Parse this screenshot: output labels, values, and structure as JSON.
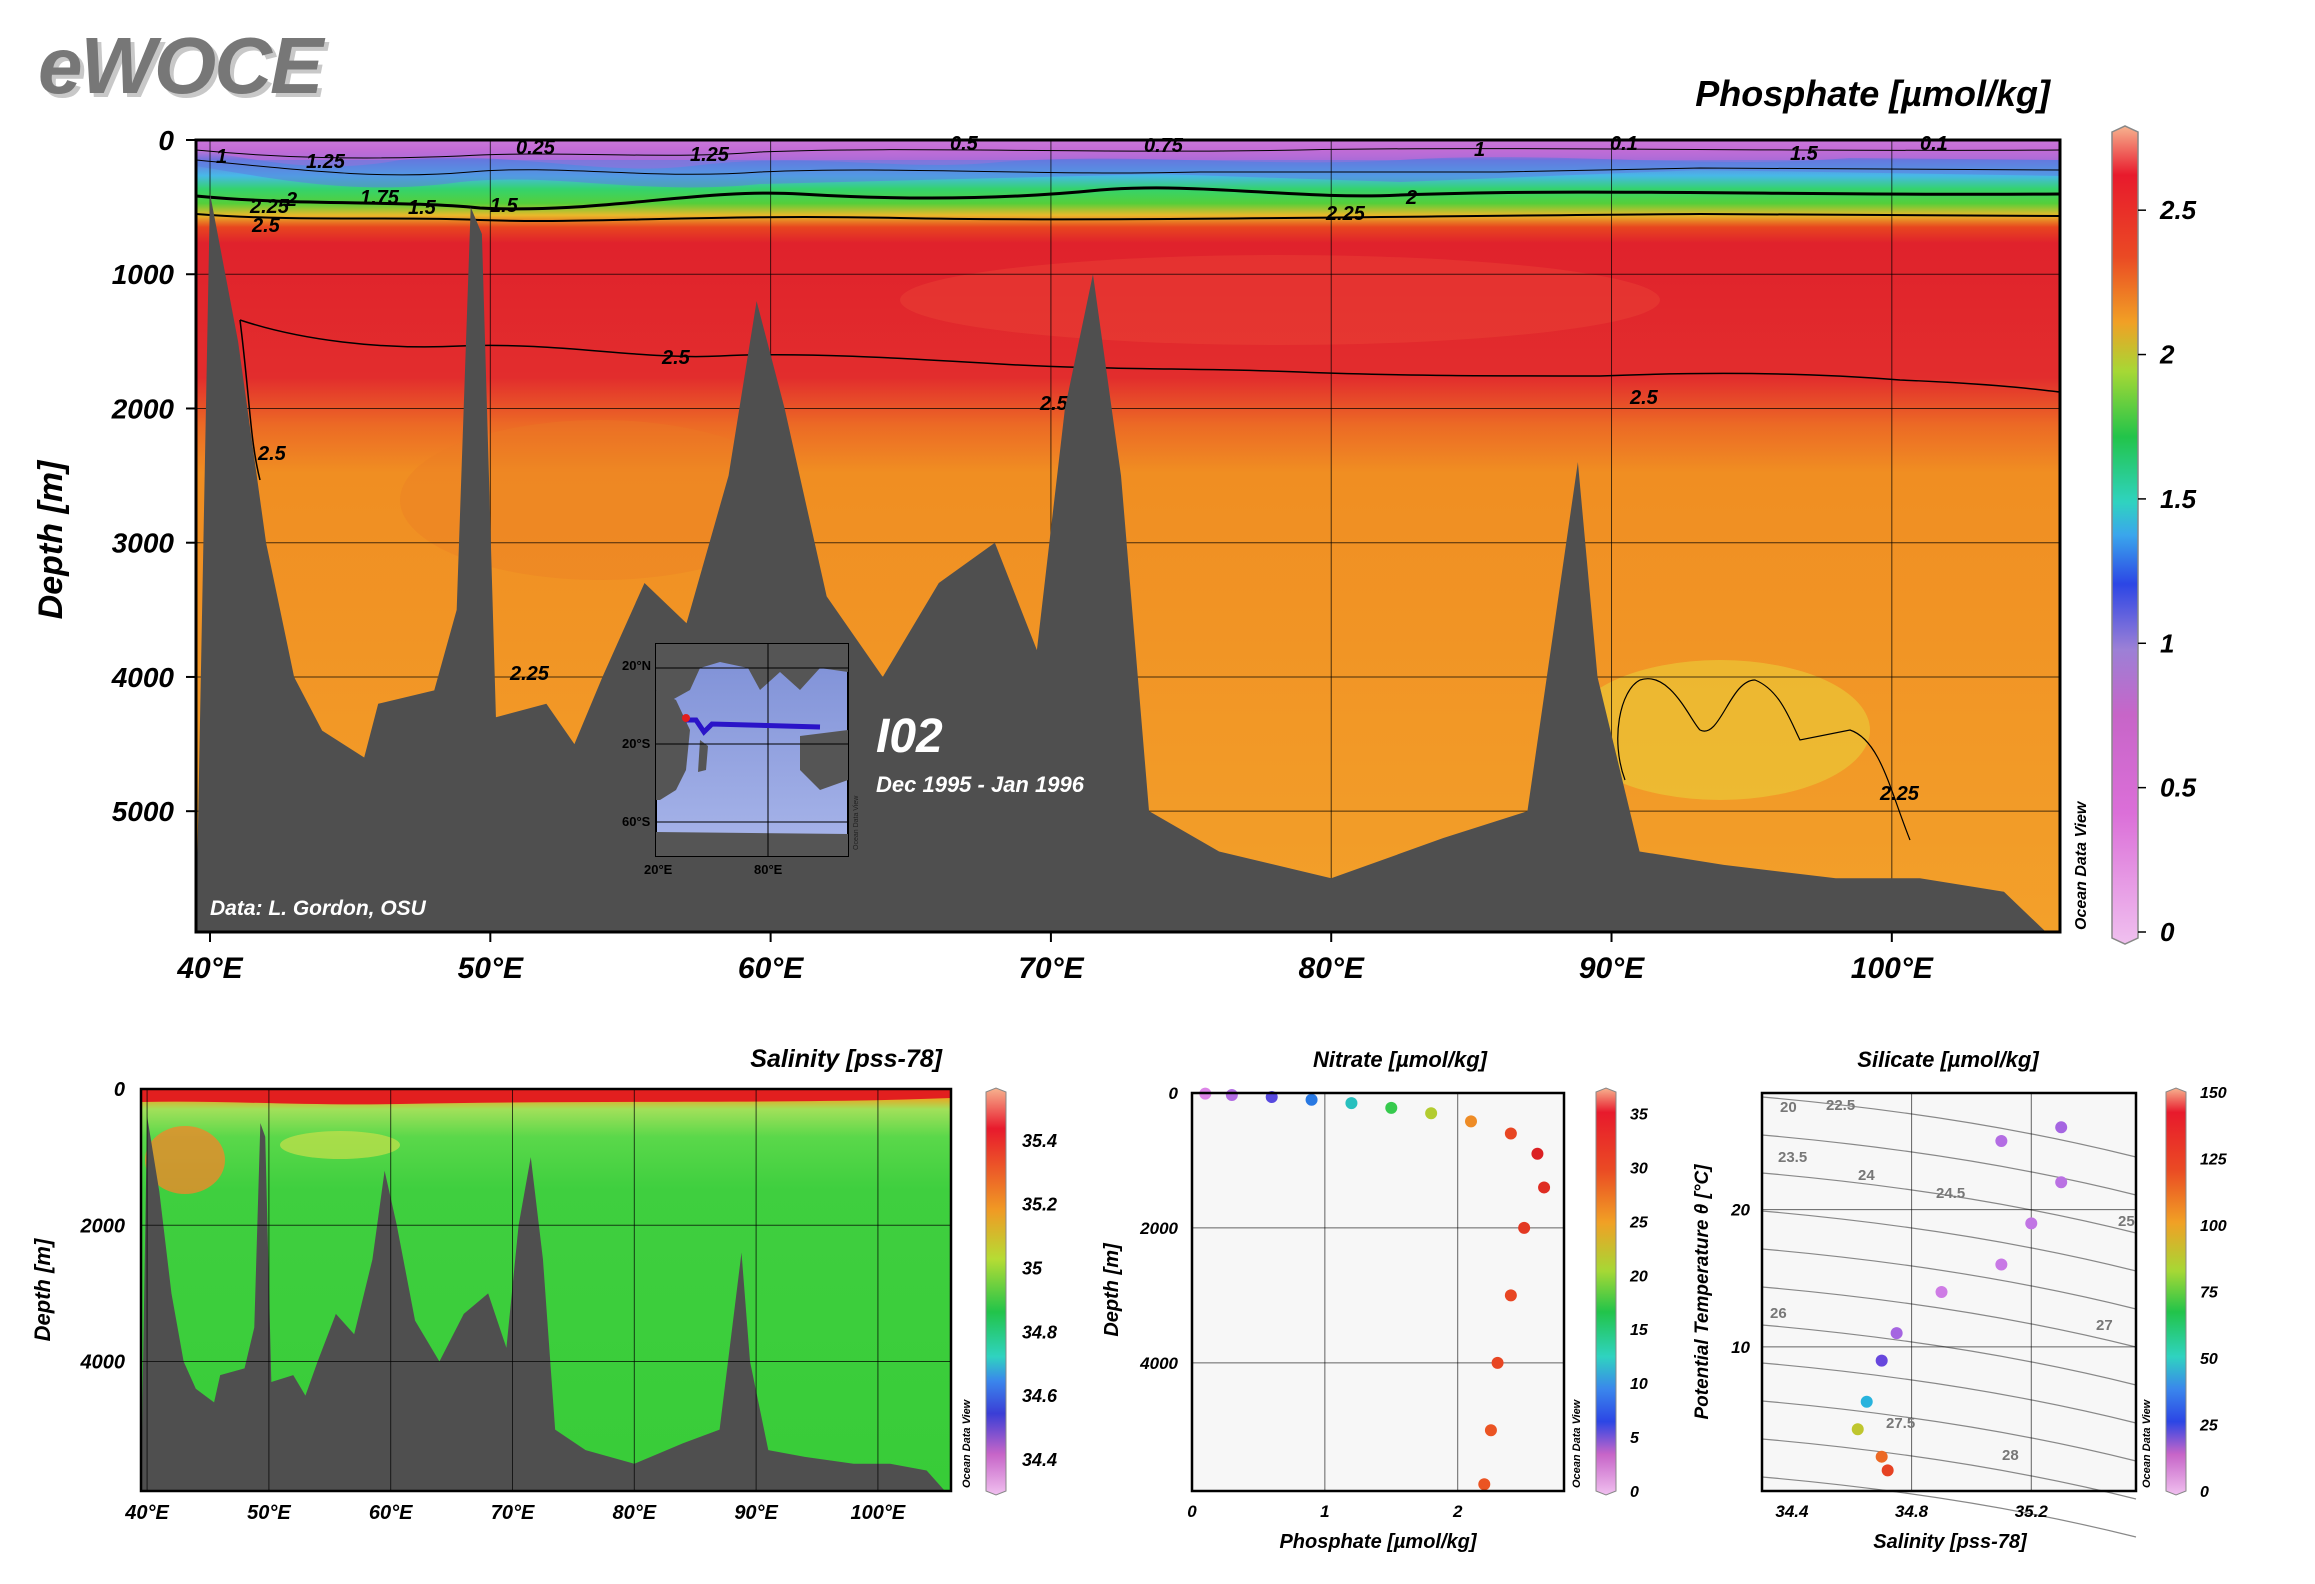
{
  "logo": "eWOCE",
  "main_section": {
    "title": "Phosphate [µmol/kg]",
    "ylabel": "Depth [m]",
    "y_ticks": [
      "0",
      "1000",
      "2000",
      "3000",
      "4000",
      "5000"
    ],
    "x_ticks": [
      "40°E",
      "50°E",
      "60°E",
      "70°E",
      "80°E",
      "90°E",
      "100°E"
    ],
    "colorbar_ticks": [
      "2.5",
      "2",
      "1.5",
      "1",
      "0.5",
      "0"
    ],
    "watermark": "Ocean Data View",
    "credit": "Data: L. Gordon, OSU",
    "cruise": "I02",
    "dates": "Dec 1995 - Jan 1996",
    "contour_labels": [
      "1",
      "1.25",
      "0.25",
      "1.25",
      "0.5",
      "0.75",
      "1",
      "0.1",
      "1.5",
      "0.1",
      "2.25",
      "2",
      "1.75",
      "1.5",
      "1.5",
      "2.5",
      "2",
      "2.25",
      "2.5",
      "2.5",
      "2.5",
      "2.5",
      "2.25",
      "2.25"
    ],
    "inset_map": {
      "lat_labels": [
        "20°N",
        "20°S",
        "60°S"
      ],
      "lon_labels": [
        "20°E",
        "80°E"
      ],
      "credit": "Ocean Data View"
    }
  },
  "salinity_section": {
    "title": "Salinity [pss-78]",
    "ylabel": "Depth [m]",
    "y_ticks": [
      "0",
      "2000",
      "4000"
    ],
    "x_ticks": [
      "40°E",
      "50°E",
      "60°E",
      "70°E",
      "80°E",
      "90°E",
      "100°E"
    ],
    "colorbar_ticks": [
      "35.4",
      "35.2",
      "35",
      "34.8",
      "34.6",
      "34.4"
    ],
    "watermark": "Ocean Data View"
  },
  "nitrate_scatter": {
    "title": "Nitrate [µmol/kg]",
    "xlabel": "Phosphate [µmol/kg]",
    "ylabel": "Depth [m]",
    "x_ticks": [
      "0",
      "1",
      "2"
    ],
    "y_ticks": [
      "0",
      "2000",
      "4000"
    ],
    "colorbar_ticks": [
      "35",
      "30",
      "25",
      "20",
      "15",
      "10",
      "5",
      "0"
    ],
    "watermark": "Ocean Data View"
  },
  "silicate_ts": {
    "title": "Silicate [µmol/kg]",
    "xlabel": "Salinity [pss-78]",
    "ylabel": "Potential Temperature θ [°C]",
    "x_ticks": [
      "34.4",
      "34.8",
      "35.2"
    ],
    "y_ticks": [
      "20",
      "10"
    ],
    "isopycnal_labels": [
      "20",
      "22.5",
      "23.5",
      "24",
      "24.5",
      "25",
      "26",
      "27",
      "27.5",
      "28"
    ],
    "colorbar_ticks": [
      "150",
      "125",
      "100",
      "75",
      "50",
      "25",
      "0"
    ],
    "watermark": "Ocean Data View"
  },
  "chart_data": [
    {
      "type": "heatmap",
      "title": "Phosphate [µmol/kg]",
      "xlabel": "",
      "ylabel": "Depth [m]",
      "xlim": [
        39.5,
        106
      ],
      "ylim": [
        5900,
        0
      ],
      "color_range": [
        0,
        2.75
      ],
      "profiles": [
        {
          "depth": 0,
          "value": 0.4
        },
        {
          "depth": 100,
          "value": 0.9
        },
        {
          "depth": 200,
          "value": 1.3
        },
        {
          "depth": 300,
          "value": 1.6
        },
        {
          "depth": 400,
          "value": 1.9
        },
        {
          "depth": 500,
          "value": 2.2
        },
        {
          "depth": 700,
          "value": 2.5
        },
        {
          "depth": 1000,
          "value": 2.65
        },
        {
          "depth": 1600,
          "value": 2.65
        },
        {
          "depth": 2000,
          "value": 2.5
        },
        {
          "depth": 2500,
          "value": 2.35
        },
        {
          "depth": 3500,
          "value": 2.3
        },
        {
          "depth": 4500,
          "value": 2.2
        },
        {
          "depth": 5800,
          "value": 2.2
        }
      ],
      "bathymetry": [
        {
          "lon": 40,
          "depth": 400
        },
        {
          "lon": 41,
          "depth": 1500
        },
        {
          "lon": 42,
          "depth": 3000
        },
        {
          "lon": 43,
          "depth": 4000
        },
        {
          "lon": 44,
          "depth": 4400
        },
        {
          "lon": 45.5,
          "depth": 4600
        },
        {
          "lon": 46,
          "depth": 4200
        },
        {
          "lon": 48,
          "depth": 4100
        },
        {
          "lon": 48.8,
          "depth": 3500
        },
        {
          "lon": 49.3,
          "depth": 500
        },
        {
          "lon": 49.7,
          "depth": 700
        },
        {
          "lon": 50.2,
          "depth": 4300
        },
        {
          "lon": 52,
          "depth": 4200
        },
        {
          "lon": 53,
          "depth": 4500
        },
        {
          "lon": 54,
          "depth": 4000
        },
        {
          "lon": 55.5,
          "depth": 3300
        },
        {
          "lon": 57,
          "depth": 3600
        },
        {
          "lon": 58.5,
          "depth": 2500
        },
        {
          "lon": 59.5,
          "depth": 1200
        },
        {
          "lon": 60.5,
          "depth": 2000
        },
        {
          "lon": 62,
          "depth": 3400
        },
        {
          "lon": 64,
          "depth": 4000
        },
        {
          "lon": 66,
          "depth": 3300
        },
        {
          "lon": 68,
          "depth": 3000
        },
        {
          "lon": 69.5,
          "depth": 3800
        },
        {
          "lon": 70.5,
          "depth": 2000
        },
        {
          "lon": 71.5,
          "depth": 1000
        },
        {
          "lon": 72.5,
          "depth": 2500
        },
        {
          "lon": 73.5,
          "depth": 5000
        },
        {
          "lon": 76,
          "depth": 5300
        },
        {
          "lon": 80,
          "depth": 5500
        },
        {
          "lon": 84,
          "depth": 5200
        },
        {
          "lon": 87,
          "depth": 5000
        },
        {
          "lon": 88.8,
          "depth": 2400
        },
        {
          "lon": 89.5,
          "depth": 4000
        },
        {
          "lon": 91,
          "depth": 5300
        },
        {
          "lon": 94,
          "depth": 5400
        },
        {
          "lon": 98,
          "depth": 5500
        },
        {
          "lon": 101,
          "depth": 5500
        },
        {
          "lon": 104,
          "depth": 5600
        },
        {
          "lon": 105.5,
          "depth": 5900
        }
      ]
    },
    {
      "type": "heatmap",
      "title": "Salinity [pss-78]",
      "xlabel": "",
      "ylabel": "Depth [m]",
      "xlim": [
        39.5,
        106
      ],
      "ylim": [
        5900,
        0
      ],
      "color_range": [
        34.3,
        35.55
      ],
      "profiles": [
        {
          "depth": 0,
          "value": 35.3
        },
        {
          "depth": 100,
          "value": 35.0
        },
        {
          "depth": 300,
          "value": 34.82
        },
        {
          "depth": 800,
          "value": 34.78
        },
        {
          "depth": 3000,
          "value": 34.74
        },
        {
          "depth": 5800,
          "value": 34.72
        }
      ]
    },
    {
      "type": "scatter",
      "title": "Nitrate [µmol/kg]",
      "xlabel": "Phosphate [µmol/kg]",
      "ylabel": "Depth [m]",
      "xlim": [
        0,
        2.8
      ],
      "ylim": [
        5900,
        0
      ],
      "color_range": [
        0,
        37
      ],
      "points": [
        {
          "phosphate": 0.1,
          "depth": 10,
          "nitrate": 0.5
        },
        {
          "phosphate": 0.3,
          "depth": 30,
          "nitrate": 2
        },
        {
          "phosphate": 0.6,
          "depth": 60,
          "nitrate": 6
        },
        {
          "phosphate": 0.9,
          "depth": 100,
          "nitrate": 11
        },
        {
          "phosphate": 1.2,
          "depth": 150,
          "nitrate": 15
        },
        {
          "phosphate": 1.5,
          "depth": 220,
          "nitrate": 19
        },
        {
          "phosphate": 1.8,
          "depth": 300,
          "nitrate": 24
        },
        {
          "phosphate": 2.1,
          "depth": 420,
          "nitrate": 29
        },
        {
          "phosphate": 2.4,
          "depth": 600,
          "nitrate": 33
        },
        {
          "phosphate": 2.6,
          "depth": 900,
          "nitrate": 36
        },
        {
          "phosphate": 2.65,
          "depth": 1400,
          "nitrate": 35
        },
        {
          "phosphate": 2.5,
          "depth": 2000,
          "nitrate": 34
        },
        {
          "phosphate": 2.4,
          "depth": 3000,
          "nitrate": 33
        },
        {
          "phosphate": 2.3,
          "depth": 4000,
          "nitrate": 33
        },
        {
          "phosphate": 2.25,
          "depth": 5000,
          "nitrate": 32
        },
        {
          "phosphate": 2.2,
          "depth": 5800,
          "nitrate": 32
        }
      ]
    },
    {
      "type": "scatter",
      "title": "Silicate [µmol/kg]",
      "xlabel": "Salinity [pss-78]",
      "ylabel": "Potential Temperature θ [°C]",
      "xlim": [
        34.3,
        35.55
      ],
      "ylim": [
        -0.5,
        28.5
      ],
      "color_range": [
        0,
        150
      ],
      "points": [
        {
          "salinity": 35.3,
          "theta": 26,
          "silicate": 10
        },
        {
          "salinity": 35.1,
          "theta": 25,
          "silicate": 8
        },
        {
          "salinity": 35.3,
          "theta": 22,
          "silicate": 7
        },
        {
          "salinity": 35.2,
          "theta": 19,
          "silicate": 6
        },
        {
          "salinity": 35.1,
          "theta": 16,
          "silicate": 5
        },
        {
          "salinity": 34.9,
          "theta": 14,
          "silicate": 4
        },
        {
          "salinity": 34.75,
          "theta": 11,
          "silicate": 10
        },
        {
          "salinity": 34.7,
          "theta": 9,
          "silicate": 20
        },
        {
          "salinity": 34.65,
          "theta": 6,
          "silicate": 55
        },
        {
          "salinity": 34.62,
          "theta": 4,
          "silicate": 100
        },
        {
          "salinity": 34.7,
          "theta": 2,
          "silicate": 125
        },
        {
          "salinity": 34.72,
          "theta": 1,
          "silicate": 135
        }
      ]
    }
  ],
  "colors": {
    "land": "#4f4f4f",
    "frame": "#000000",
    "logo": "#777777"
  }
}
